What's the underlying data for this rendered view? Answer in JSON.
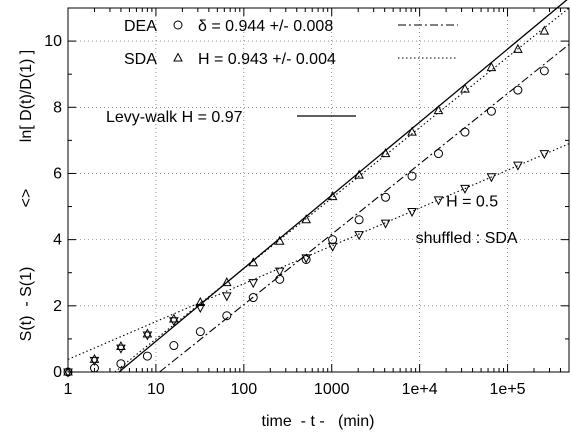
{
  "chart_data": {
    "type": "scatter",
    "title": "",
    "xlabel": "time  - t -   (min)",
    "ylabel_left": "S(t)  - S(1)",
    "ylabel_mid": "<>",
    "ylabel_right": "ln[ D(t)/D(1) ]",
    "x_scale": "log",
    "xlim": [
      1,
      500000
    ],
    "ylim": [
      0,
      11
    ],
    "grid": true,
    "x_ticks": [
      {
        "value": 1,
        "label": "1"
      },
      {
        "value": 10,
        "label": "10"
      },
      {
        "value": 100,
        "label": "100"
      },
      {
        "value": 1000,
        "label": "1000"
      },
      {
        "value": 10000,
        "label": "1e+4"
      },
      {
        "value": 100000,
        "label": "1e+5"
      }
    ],
    "y_ticks": [
      {
        "value": 0,
        "label": "0"
      },
      {
        "value": 2,
        "label": "2"
      },
      {
        "value": 4,
        "label": "4"
      },
      {
        "value": 6,
        "label": "6"
      },
      {
        "value": 8,
        "label": "8"
      },
      {
        "value": 10,
        "label": "10"
      }
    ],
    "legend": {
      "position": "top-left",
      "entries": [
        {
          "name": "DEA",
          "marker": "circle",
          "fit_label": "δ = 0.944 +/- 0.008",
          "fit_style": "dash-dot"
        },
        {
          "name": "SDA",
          "marker": "triangle-up",
          "fit_label": "H = 0.943 +/- 0.004",
          "fit_style": "dotted"
        },
        {
          "name": "Levy-walk H = 0.97",
          "marker": "none",
          "fit_style": "solid"
        }
      ]
    },
    "series": [
      {
        "name": "DEA",
        "marker": "circle",
        "x": [
          1,
          2,
          4,
          8,
          16,
          32,
          64,
          128,
          256,
          512,
          1024,
          2048,
          4096,
          8192,
          16384,
          32768,
          65536,
          131072,
          262144
        ],
        "y": [
          0.0,
          0.12,
          0.25,
          0.48,
          0.8,
          1.22,
          1.7,
          2.25,
          2.8,
          3.4,
          4.0,
          4.6,
          5.28,
          5.92,
          6.6,
          7.25,
          7.88,
          8.52,
          9.1
        ]
      },
      {
        "name": "SDA",
        "marker": "triangle-up",
        "x": [
          1,
          2,
          4,
          8,
          16,
          32,
          64,
          128,
          256,
          512,
          1024,
          2048,
          4096,
          8192,
          16384,
          32768,
          65536,
          131072,
          262144
        ],
        "y": [
          0.0,
          0.38,
          0.77,
          1.15,
          1.6,
          2.1,
          2.7,
          3.3,
          3.95,
          4.6,
          5.3,
          5.95,
          6.6,
          7.25,
          7.9,
          8.55,
          9.2,
          9.75,
          10.3
        ]
      },
      {
        "name": "shuffled : SDA",
        "marker": "triangle-down",
        "x": [
          1,
          2,
          4,
          8,
          16,
          32,
          64,
          128,
          256,
          512,
          1024,
          2048,
          4096,
          8192,
          16384,
          32768,
          65536,
          131072,
          262144
        ],
        "y": [
          0.0,
          0.35,
          0.72,
          1.12,
          1.55,
          1.95,
          2.3,
          2.7,
          3.05,
          3.45,
          3.8,
          4.15,
          4.5,
          4.85,
          5.2,
          5.55,
          5.9,
          6.25,
          6.6
        ]
      }
    ],
    "fit_lines": [
      {
        "name": "Levy-walk H = 0.97",
        "style": "solid",
        "x": [
          3.8,
          500000
        ],
        "y": [
          0,
          11.3
        ]
      },
      {
        "name": "δ = 0.944 +/- 0.008",
        "style": "dash-dot",
        "x": [
          11,
          500000
        ],
        "y": [
          0,
          9.9
        ]
      },
      {
        "name": "H = 0.943 +/- 0.004",
        "style": "dotted",
        "x": [
          3.4,
          500000
        ],
        "y": [
          0,
          11.0
        ]
      },
      {
        "name": "H = 0.5",
        "style": "dotted",
        "x": [
          1,
          500000
        ],
        "y": [
          0.38,
          6.9
        ]
      }
    ],
    "annotations": [
      {
        "text": "H = 0.5",
        "x": 20000,
        "y": 5.0
      },
      {
        "text": "shuffled : SDA",
        "x": 9000,
        "y": 3.9
      }
    ]
  }
}
